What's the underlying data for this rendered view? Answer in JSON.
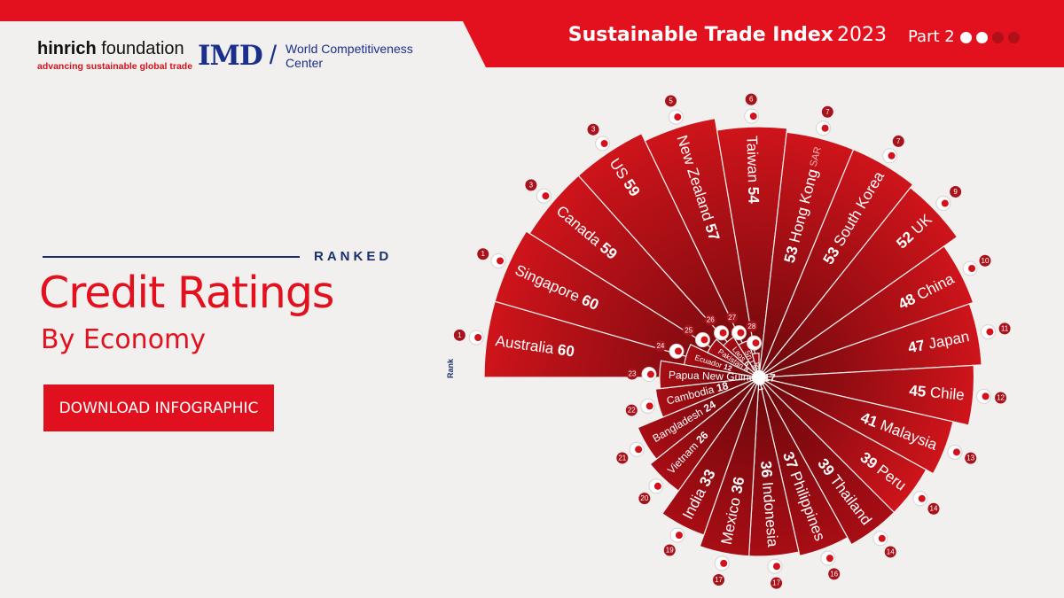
{
  "header": {
    "title_bold": "Sustainable Trade Index",
    "title_year": "2023",
    "part": "Part 2",
    "part_dots": [
      "#ffffff",
      "#ffffff",
      "#b01018",
      "#b01018"
    ]
  },
  "logos": {
    "hinrich_bold": "hinrich",
    "hinrich_rest": " foundation",
    "hinrich_tagline": "advancing sustainable global trade",
    "imd": "IMD",
    "imd_sub_line1": "World Competitiveness",
    "imd_sub_line2": "Center"
  },
  "left": {
    "ranked": "RANKED",
    "heading": "Credit Ratings",
    "subheading": "By Economy",
    "button": "DOWNLOAD INFOGRAPHIC"
  },
  "colors": {
    "accent": "#e3101e",
    "navy": "#1a2f6a",
    "bar_light": "#d0161c",
    "bar_dark": "#7a0a10"
  },
  "chart_data": {
    "type": "bar",
    "title": "Credit Ratings By Economy",
    "rank_label": "Rank",
    "series": [
      {
        "rank": 1,
        "economy": "Australia",
        "value": 60,
        "flag": "australia-flag"
      },
      {
        "rank": 1,
        "economy": "Singapore",
        "value": 60,
        "flag": "singapore-flag"
      },
      {
        "rank": 3,
        "economy": "Canada",
        "value": 59,
        "flag": "canada-flag"
      },
      {
        "rank": 3,
        "economy": "US",
        "value": 59,
        "flag": "us-flag"
      },
      {
        "rank": 5,
        "economy": "New Zealand",
        "value": 57,
        "flag": "new-zealand-flag"
      },
      {
        "rank": 6,
        "economy": "Taiwan",
        "value": 54,
        "flag": "taiwan-flag"
      },
      {
        "rank": 7,
        "economy": "Hong Kong",
        "suffix": "SAR",
        "value": 53,
        "flag": "hong-kong-flag"
      },
      {
        "rank": 7,
        "economy": "South Korea",
        "value": 53,
        "flag": "south-korea-flag"
      },
      {
        "rank": 9,
        "economy": "UK",
        "value": 52,
        "flag": "uk-flag"
      },
      {
        "rank": 10,
        "economy": "China",
        "value": 48,
        "flag": "china-flag"
      },
      {
        "rank": 11,
        "economy": "Japan",
        "value": 47,
        "flag": "japan-flag"
      },
      {
        "rank": 12,
        "economy": "Chile",
        "value": 45,
        "flag": "chile-flag"
      },
      {
        "rank": 13,
        "economy": "Malaysia",
        "value": 41,
        "flag": "malaysia-flag"
      },
      {
        "rank": 14,
        "economy": "Peru",
        "value": 39,
        "flag": "peru-flag"
      },
      {
        "rank": 14,
        "economy": "Thailand",
        "value": 39,
        "flag": "thailand-flag"
      },
      {
        "rank": 16,
        "economy": "Philippines",
        "value": 37,
        "flag": "philippines-flag"
      },
      {
        "rank": 17,
        "economy": "Indonesia",
        "value": 36,
        "flag": "indonesia-flag"
      },
      {
        "rank": 17,
        "economy": "Mexico",
        "value": 36,
        "flag": "mexico-flag"
      },
      {
        "rank": 19,
        "economy": "India",
        "value": 33,
        "flag": "india-flag"
      },
      {
        "rank": 20,
        "economy": "Vietnam",
        "value": 26,
        "flag": "vietnam-flag"
      },
      {
        "rank": 21,
        "economy": "Bangladesh",
        "value": 24,
        "flag": "bangladesh-flag"
      },
      {
        "rank": 22,
        "economy": "Cambodia",
        "value": 18,
        "flag": "cambodia-flag"
      },
      {
        "rank": 23,
        "economy": "Papua New Guinea",
        "value": 17,
        "flag": "papua-new-guinea-flag"
      },
      {
        "rank": 24,
        "economy": "Ecuador",
        "value": 12,
        "flag": "ecuador-flag"
      },
      {
        "rank": 25,
        "economy": "Pakistan",
        "value": 8,
        "flag": "pakistan-flag"
      },
      {
        "rank": 26,
        "economy": "Laos",
        "value": 6,
        "flag": "laos-flag"
      },
      {
        "rank": 27,
        "economy": "Sri Lanka",
        "value": 4,
        "flag": "sri-lanka-flag"
      },
      {
        "rank": 28,
        "economy": "Russia",
        "value": 1,
        "flag": "russia-flag"
      }
    ]
  }
}
